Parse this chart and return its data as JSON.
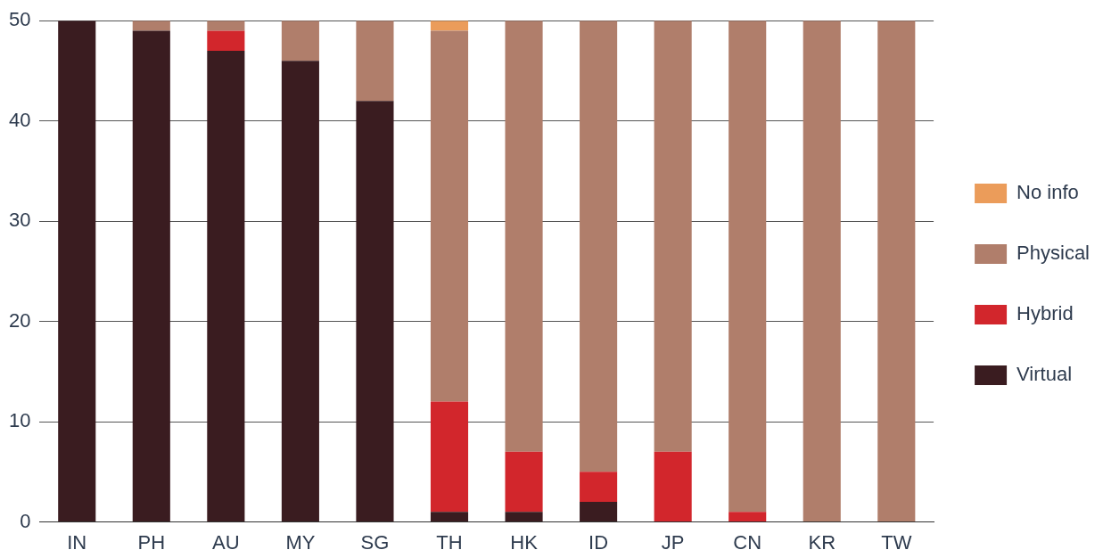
{
  "chart_data": {
    "type": "bar",
    "stacked": true,
    "categories": [
      "IN",
      "PH",
      "AU",
      "MY",
      "SG",
      "TH",
      "HK",
      "ID",
      "JP",
      "CN",
      "KR",
      "TW"
    ],
    "series": [
      {
        "name": "Virtual",
        "color": "#3a1c20",
        "values": [
          50,
          49,
          47,
          46,
          42,
          1,
          1,
          2,
          0,
          0,
          0,
          0
        ]
      },
      {
        "name": "Hybrid",
        "color": "#d2262c",
        "values": [
          0,
          0,
          2,
          0,
          0,
          11,
          6,
          3,
          7,
          1,
          0,
          0
        ]
      },
      {
        "name": "Physical",
        "color": "#b07e6b",
        "values": [
          0,
          1,
          1,
          4,
          8,
          37,
          43,
          45,
          43,
          49,
          50,
          50
        ]
      },
      {
        "name": "No info",
        "color": "#eb9c5a",
        "values": [
          0,
          0,
          0,
          0,
          0,
          1,
          0,
          0,
          0,
          0,
          0,
          0
        ]
      }
    ],
    "ylim": [
      0,
      50
    ],
    "yticks": [
      0,
      10,
      20,
      30,
      40,
      50
    ],
    "grid": "y",
    "legend": "right"
  }
}
